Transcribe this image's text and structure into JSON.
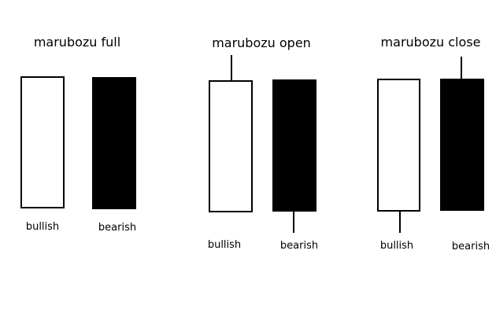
{
  "colors": {
    "bullish_body": "#ffffff",
    "bearish_body": "#000000",
    "outline": "#000000",
    "background": "#ffffff"
  },
  "groups": [
    {
      "title": "marubozu full",
      "candles": [
        {
          "label": "bullish",
          "kind": "bullish",
          "wick": "none"
        },
        {
          "label": "bearish",
          "kind": "bearish",
          "wick": "none"
        }
      ]
    },
    {
      "title": "marubozu open",
      "candles": [
        {
          "label": "bullish",
          "kind": "bullish",
          "wick": "top"
        },
        {
          "label": "bearish",
          "kind": "bearish",
          "wick": "bottom"
        }
      ]
    },
    {
      "title": "marubozu close",
      "candles": [
        {
          "label": "bullish",
          "kind": "bullish",
          "wick": "bottom"
        },
        {
          "label": "bearish",
          "kind": "bearish",
          "wick": "top"
        }
      ]
    }
  ]
}
